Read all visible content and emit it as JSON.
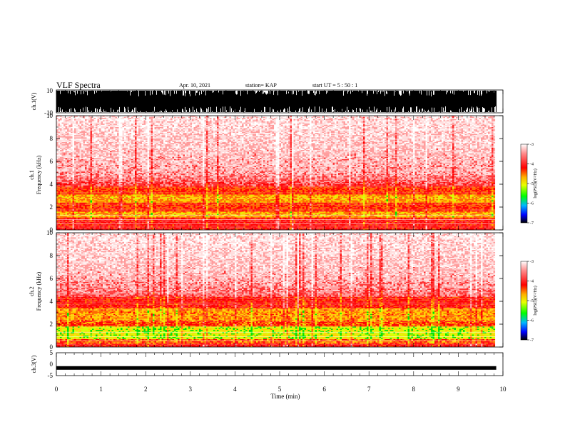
{
  "header": {
    "title": "VLF Spectra",
    "date": "Apr. 10, 2021",
    "station": "station= KAP",
    "start": "start  UT =   5 : 50 : 1"
  },
  "chart_data": [
    {
      "type": "line",
      "id": "ch1_waveform",
      "ylabel": "ch.1(V)",
      "ylim": [
        -10,
        10
      ],
      "yticks": [
        "10",
        "-10"
      ],
      "xlim": [
        0,
        10
      ],
      "description_series": "saturated broadband waveform"
    },
    {
      "type": "heatmap",
      "id": "ch1_spectrogram",
      "ylabel": "ch.1",
      "ylabel2": "Frequency (kHz)",
      "ylim": [
        0,
        10
      ],
      "yticks": [
        "0",
        "2",
        "4",
        "6",
        "8",
        "10"
      ],
      "xlim": [
        0,
        10
      ],
      "colorbar": {
        "label": "log(PSD)(V²/Hz)",
        "range": [
          -7,
          -3
        ],
        "ticks": [
          "-3",
          "-4",
          "-5",
          "-6",
          "-7"
        ]
      }
    },
    {
      "type": "heatmap",
      "id": "ch2_spectrogram",
      "ylabel": "ch.2",
      "ylabel2": "Frequency (kHz)",
      "ylim": [
        0,
        10
      ],
      "yticks": [
        "0",
        "2",
        "4",
        "6",
        "8",
        "10"
      ],
      "xlim": [
        0,
        10
      ],
      "colorbar": {
        "label": "log(PSD)(V²/Hz)",
        "range": [
          -7,
          -3
        ],
        "ticks": [
          "-3",
          "-4",
          "-5",
          "-6",
          "-7"
        ]
      }
    },
    {
      "type": "line",
      "id": "ch3_waveform",
      "ylabel": "ch.3(V)",
      "ylim": [
        -5,
        5
      ],
      "yticks": [
        "5",
        "0",
        "-5"
      ],
      "xlim": [
        0,
        10
      ],
      "xlabel": "Time (min)",
      "xticks": [
        "0",
        "1",
        "2",
        "3",
        "4",
        "5",
        "6",
        "7",
        "8",
        "9",
        "10"
      ],
      "level": -1.5
    }
  ]
}
